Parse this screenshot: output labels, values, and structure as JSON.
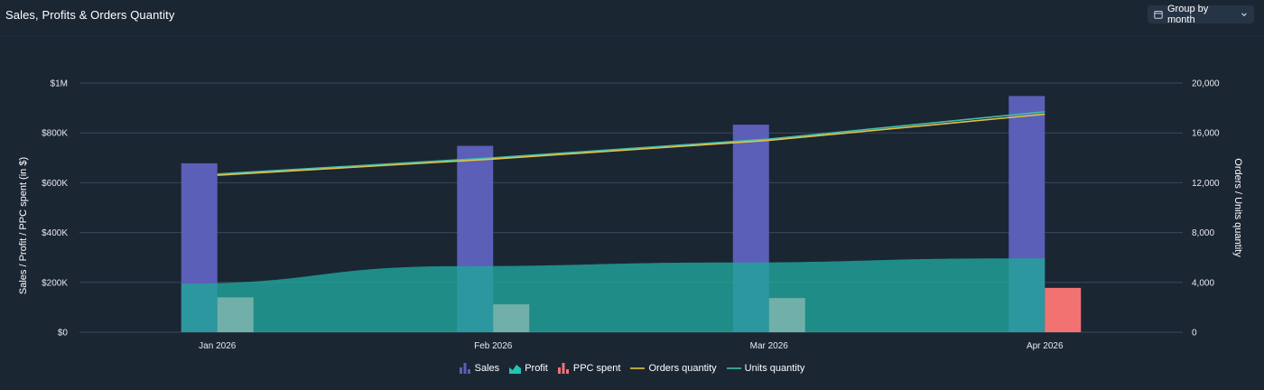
{
  "header": {
    "title": "Sales, Profits & Orders Quantity",
    "group_label": "Group by month",
    "calendar_icon": "calendar-icon",
    "chevron_icon": "chevron-down-icon"
  },
  "colors": {
    "background": "#1b2633",
    "sales": "#5b5fb8",
    "profit": "#22a39a",
    "ppc": "#f27272",
    "orders": "#e2c145",
    "units": "#3fbfae",
    "grid": "#38495b"
  },
  "chart_data": {
    "type": "bar",
    "categories": [
      "Jan 2026",
      "Feb 2026",
      "Mar 2026",
      "Apr 2026"
    ],
    "ylabel": "Sales / Profit / PPC spent (in $)",
    "y2label": "Orders / Units quantity",
    "ylim": [
      0,
      1000000
    ],
    "y2lim": [
      0,
      20000
    ],
    "yticks": [
      "$0",
      "$200K",
      "$400K",
      "$600K",
      "$800K",
      "$1M"
    ],
    "y2ticks": [
      "0",
      "4,000",
      "8,000",
      "12,000",
      "16,000",
      "20,000"
    ],
    "grid": true,
    "legend_position": "bottom",
    "series": [
      {
        "name": "Sales",
        "kind": "bar",
        "axis": "left",
        "values": [
          678000,
          748000,
          833000,
          948000
        ]
      },
      {
        "name": "Profit",
        "kind": "area",
        "axis": "left",
        "values": [
          195000,
          265000,
          280000,
          296000
        ]
      },
      {
        "name": "PPC spent",
        "kind": "bar",
        "axis": "left",
        "values": [
          140000,
          112000,
          137000,
          178000
        ]
      },
      {
        "name": "Orders quantity",
        "kind": "line",
        "axis": "right",
        "values": [
          12600,
          13900,
          15400,
          17500
        ]
      },
      {
        "name": "Units quantity",
        "kind": "line",
        "axis": "right",
        "values": [
          12700,
          14000,
          15500,
          17700
        ]
      }
    ]
  },
  "legend": [
    {
      "label": "Sales",
      "icon": "bar-chart-icon"
    },
    {
      "label": "Profit",
      "icon": "area-chart-icon"
    },
    {
      "label": "PPC spent",
      "icon": "bar-chart-icon"
    },
    {
      "label": "Orders quantity",
      "icon": "line-icon"
    },
    {
      "label": "Units quantity",
      "icon": "line-icon"
    }
  ]
}
